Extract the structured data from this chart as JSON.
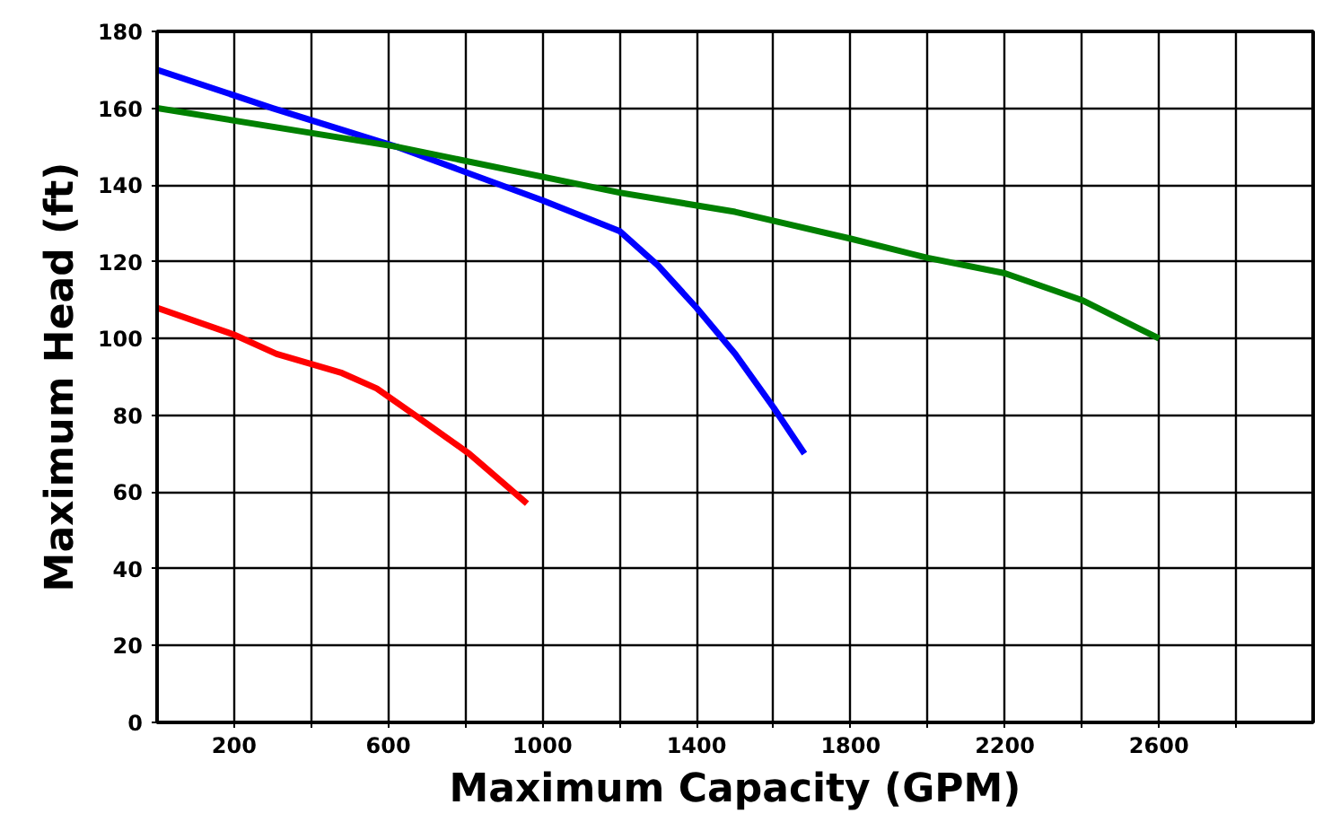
{
  "chart_data": {
    "type": "line",
    "xlabel": "Maximum Capacity (GPM)",
    "ylabel": "Maximum Head (ft)",
    "xlim": [
      0,
      3000
    ],
    "ylim": [
      0,
      180
    ],
    "xticks": [
      200,
      {
        "value": 400,
        "label": null
      },
      600,
      {
        "value": 800,
        "label": null
      },
      1000,
      {
        "value": 1200,
        "label": null
      },
      1400,
      {
        "value": 1600,
        "label": null
      },
      1800,
      {
        "value": 2000,
        "label": null
      },
      2200,
      {
        "value": 2400,
        "label": null
      },
      2600,
      {
        "value": 2800,
        "label": null
      }
    ],
    "yticks": [
      0,
      20,
      40,
      60,
      80,
      100,
      120,
      140,
      160,
      180
    ],
    "grid": true,
    "marker": "none",
    "line_style": "solid",
    "series": [
      {
        "color": "#ff0000",
        "x": [
          0,
          200,
          310,
          480,
          570,
          670,
          810,
          960
        ],
        "values": [
          108,
          101,
          96,
          91,
          87,
          80,
          70,
          57
        ]
      },
      {
        "color": "#0000ff",
        "x": [
          0,
          300,
          620,
          1000,
          1200,
          1300,
          1400,
          1500,
          1600,
          1680
        ],
        "values": [
          170,
          160,
          150,
          136,
          128,
          119,
          108,
          96,
          82,
          70
        ]
      },
      {
        "color": "#008000",
        "x": [
          0,
          620,
          1200,
          1500,
          1800,
          2000,
          2200,
          2400,
          2600
        ],
        "values": [
          160,
          150,
          138,
          133,
          126,
          121,
          117,
          110,
          100
        ]
      }
    ]
  }
}
